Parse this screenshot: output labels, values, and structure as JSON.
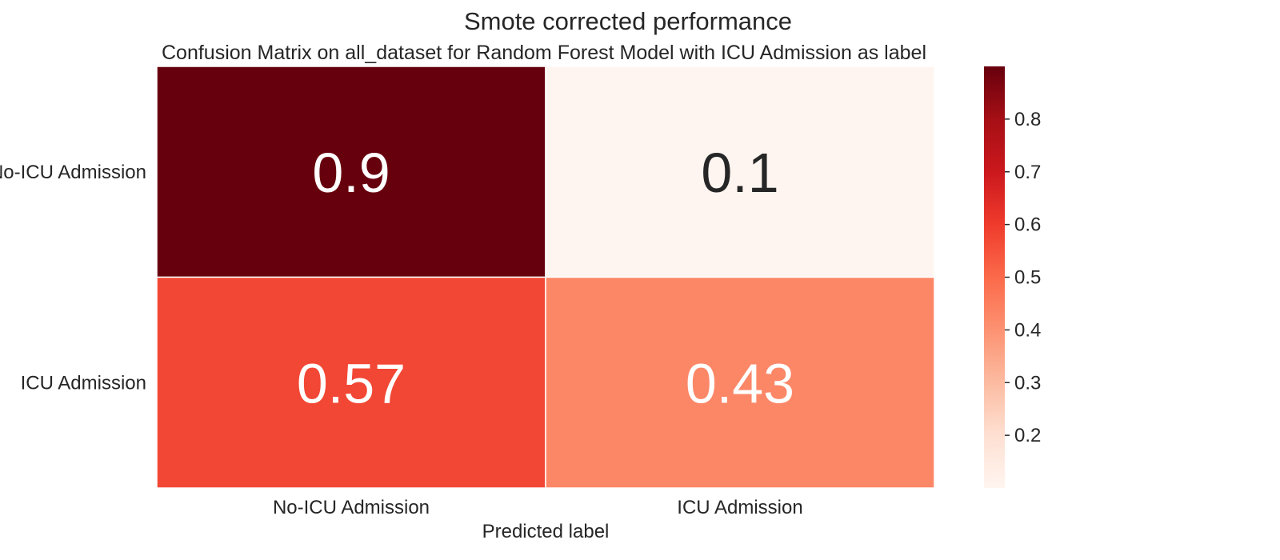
{
  "chart_data": {
    "type": "heatmap",
    "suptitle": "Smote corrected performance",
    "title": "Confusion Matrix on all_dataset for Random Forest Model with ICU Admission as label",
    "xlabel": "Predicted label",
    "ylabel": "",
    "x_categories": [
      "No-ICU Admission",
      "ICU Admission"
    ],
    "y_categories": [
      "No-ICU Admission",
      "ICU Admission"
    ],
    "values": [
      [
        0.9,
        0.1
      ],
      [
        0.57,
        0.43
      ]
    ],
    "annotations": [
      [
        "0.9",
        "0.1"
      ],
      [
        "0.57",
        "0.43"
      ]
    ],
    "colormap": "Reds",
    "colorbar": {
      "range": [
        0.1,
        0.9
      ],
      "ticks": [
        0.2,
        0.3,
        0.4,
        0.5,
        0.6,
        0.7,
        0.8
      ],
      "tick_labels": [
        "0.2",
        "0.3",
        "0.4",
        "0.5",
        "0.6",
        "0.7",
        "0.8"
      ]
    },
    "colors": {
      "cell_0_0": "#67000d",
      "cell_0_1": "#fff5f0",
      "cell_1_0": "#f24734",
      "cell_1_1": "#fc8767",
      "annotation_dark": "#262626",
      "annotation_light": "#ffffff"
    }
  }
}
